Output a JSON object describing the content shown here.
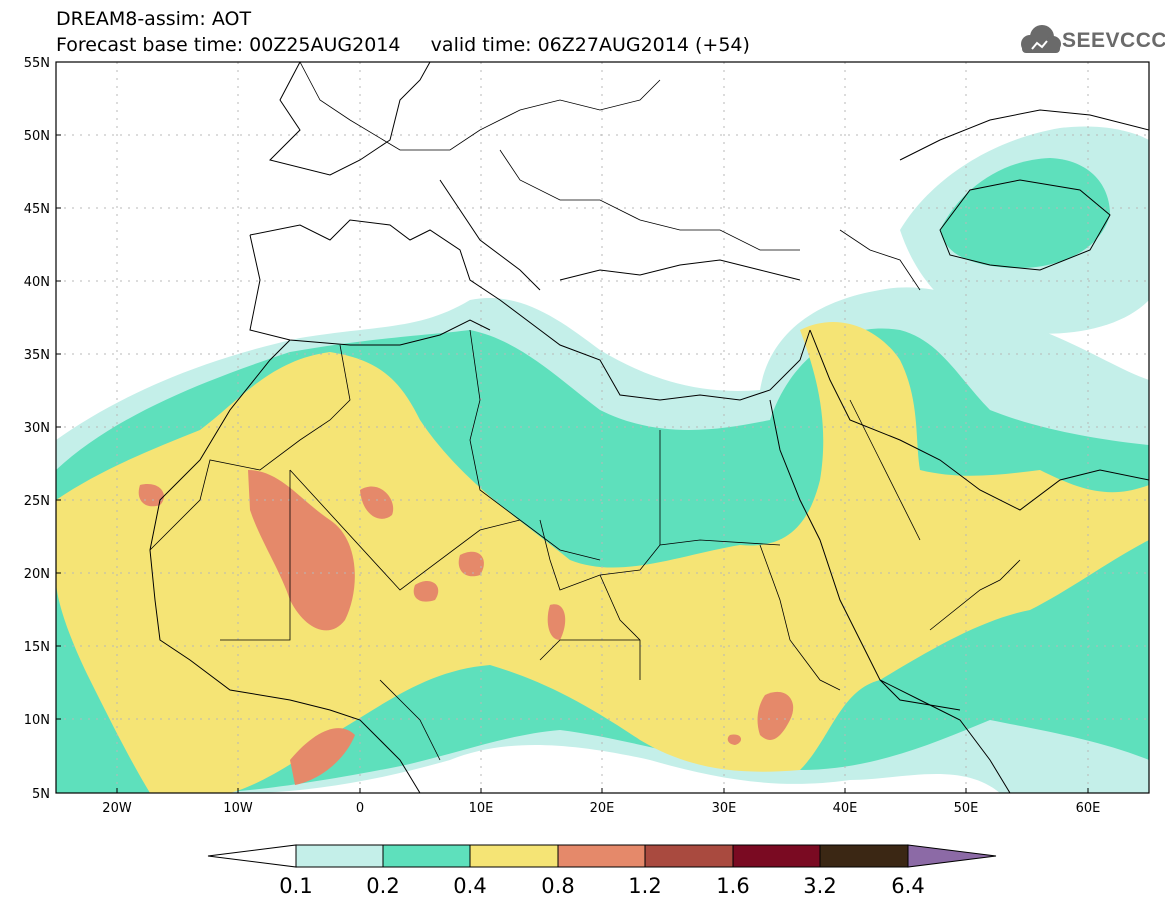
{
  "title": {
    "line1": "DREAM8-assim: AOT",
    "line2": "Forecast base time: 00Z25AUG2014     valid time: 06Z27AUG2014 (+54)"
  },
  "logo": {
    "text": "SEEVCCC",
    "icon": "cloud-icon",
    "color": "#6a6a6a"
  },
  "map": {
    "projection": "lat-lon",
    "lon_range": [
      -25,
      65
    ],
    "lat_range": [
      5,
      55
    ],
    "grid": true,
    "lat_ticks": [
      "55N",
      "50N",
      "45N",
      "40N",
      "35N",
      "30N",
      "25N",
      "20N",
      "15N",
      "10N",
      "5N"
    ],
    "lon_ticks": [
      "20W",
      "10W",
      "0",
      "10E",
      "20E",
      "30E",
      "40E",
      "50E",
      "60E"
    ]
  },
  "legend": {
    "levels": [
      "0.1",
      "0.2",
      "0.4",
      "0.8",
      "1.2",
      "1.6",
      "3.2",
      "6.4"
    ],
    "colors": [
      "#ffffff",
      "#c4efe9",
      "#5ee0bc",
      "#f5e475",
      "#e5896a",
      "#a94a3f",
      "#7a0a22",
      "#3b2714",
      "#8c6aa6"
    ]
  }
}
